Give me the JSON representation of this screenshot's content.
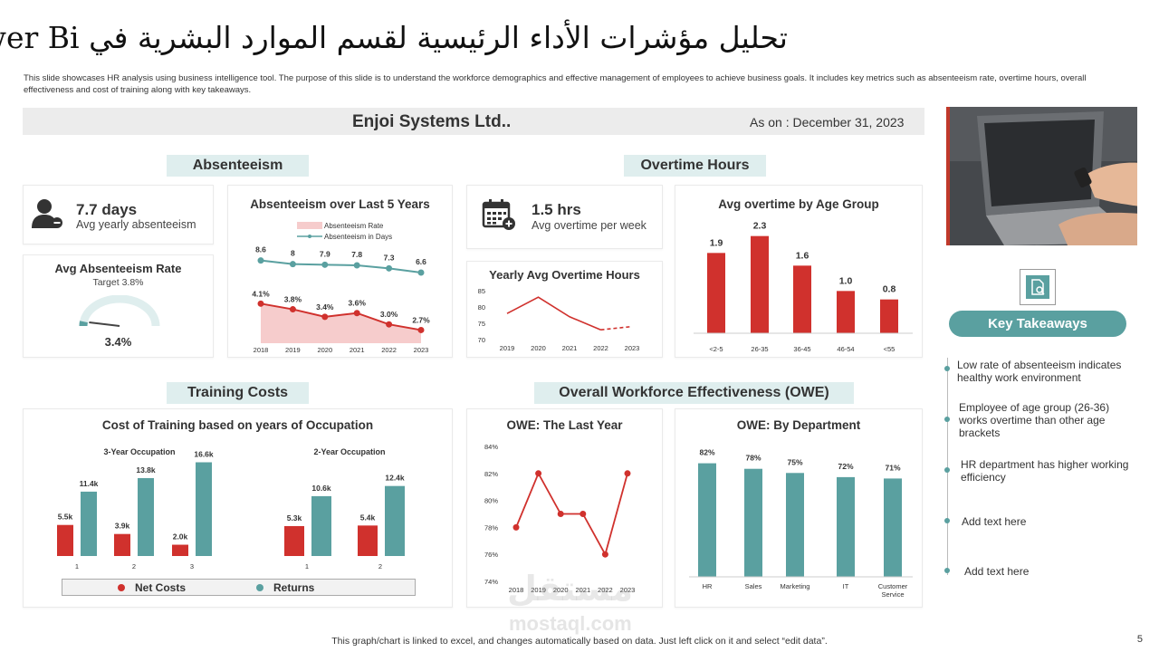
{
  "header": {
    "title": "تحليل مؤشرات الأداء الرئيسية لقسم الموارد البشرية في Power Bi",
    "description": "This slide showcases HR analysis using business intelligence tool. The purpose of this slide is to understand the workforce demographics and effective management of employees to achieve business goals. It includes key metrics such as absenteeism rate, overtime hours, overall effectiveness and cost of training along with key takeaways."
  },
  "company_band": {
    "company": "Enjoi Systems Ltd..",
    "as_on": "As on : December 31, 2023"
  },
  "sections": {
    "absenteeism": "Absenteeism",
    "overtime": "Overtime Hours",
    "training": "Training Costs",
    "owe": "Overall Workforce Effectiveness (OWE)"
  },
  "kpis": {
    "absenteeism_value": "7.7 days",
    "absenteeism_label": "Avg yearly absenteeism",
    "overtime_value": "1.5 hrs",
    "overtime_label": "Avg overtime per week"
  },
  "gauge": {
    "title": "Avg Absenteeism Rate",
    "target": "Target 3.8%",
    "value_label": "3.4%",
    "fraction": 0.034
  },
  "takeaways": {
    "button": "Key Takeaways",
    "items": [
      "Low rate of absenteeism indicates healthy work environment",
      "Employee of age group (26-36) works overtime than other age brackets",
      "HR department has higher working efficiency",
      "Add text here",
      "Add text here"
    ]
  },
  "footer": {
    "note": "This graph/chart is linked to excel, and changes automatically based on data. Just left click on it and select “edit data”.",
    "page": "5"
  },
  "watermark": {
    "arabic": "مستقل",
    "latin": "mostaql.com"
  },
  "colors": {
    "red": "#d0312d",
    "teal": "#5aa0a0",
    "band": "#ececec",
    "tag": "#dfeeee"
  },
  "chart_data": [
    {
      "id": "absenteeism-5yr",
      "type": "line",
      "title": "Absenteeism over Last 5 Years",
      "categories": [
        "2018",
        "2019",
        "2020",
        "2021",
        "2022",
        "2023"
      ],
      "series": [
        {
          "name": "Absenteeism Rate",
          "values": [
            4.1,
            3.8,
            3.4,
            3.6,
            3.0,
            2.7
          ],
          "labels": [
            "4.1%",
            "3.8%",
            "3.4%",
            "3.6%",
            "3.0%",
            "2.7%"
          ]
        },
        {
          "name": "Absenteeism in Days",
          "values": [
            8.6,
            8,
            7.9,
            7.8,
            7.3,
            6.6
          ],
          "labels": [
            "8.6",
            "8",
            "7.9",
            "7.8",
            "7.3",
            "6.6"
          ]
        }
      ]
    },
    {
      "id": "yearly-overtime",
      "type": "line",
      "title": "Yearly Avg Overtime Hours",
      "categories": [
        "2019",
        "2020",
        "2021",
        "2022",
        "2023"
      ],
      "values": [
        78,
        83,
        77,
        73,
        74
      ],
      "yticks": [
        "85",
        "80",
        "75",
        "70"
      ],
      "ylim": [
        70,
        85
      ]
    },
    {
      "id": "overtime-by-age",
      "type": "bar",
      "title": "Avg overtime by Age Group",
      "categories": [
        "<2-5",
        "26-35",
        "36-45",
        "46-54",
        "<55"
      ],
      "values": [
        1.9,
        2.3,
        1.6,
        1.0,
        0.8
      ],
      "labels": [
        "1.9",
        "2.3",
        "1.6",
        "1.0",
        "0.8"
      ]
    },
    {
      "id": "training-costs",
      "type": "bar",
      "title": "Cost of Training based on years of Occupation",
      "groups": [
        {
          "name": "3-Year Occupation",
          "categories": [
            "1",
            "2",
            "3"
          ],
          "series": [
            {
              "name": "Net Costs",
              "values": [
                5.5,
                3.9,
                2.0
              ],
              "labels": [
                "5.5k",
                "3.9k",
                "2.0k"
              ]
            },
            {
              "name": "Returns",
              "values": [
                11.4,
                13.8,
                16.6
              ],
              "labels": [
                "11.4k",
                "13.8k",
                "16.6k"
              ]
            }
          ]
        },
        {
          "name": "2-Year Occupation",
          "categories": [
            "1",
            "2"
          ],
          "series": [
            {
              "name": "Net Costs",
              "values": [
                5.3,
                5.4
              ],
              "labels": [
                "5.3k",
                "5.4k"
              ]
            },
            {
              "name": "Returns",
              "values": [
                10.6,
                12.4
              ],
              "labels": [
                "10.6k",
                "12.4k"
              ]
            }
          ]
        }
      ],
      "legend": [
        "Net Costs",
        "Returns"
      ]
    },
    {
      "id": "owe-last-year",
      "type": "line",
      "title": "OWE: The Last Year",
      "categories": [
        "2018",
        "2019",
        "2020",
        "2021",
        "2022",
        "2023"
      ],
      "values": [
        78,
        82,
        79,
        79,
        76,
        82
      ],
      "yticks": [
        "84%",
        "82%",
        "80%",
        "78%",
        "76%",
        "74%"
      ],
      "ylim": [
        74,
        84
      ]
    },
    {
      "id": "owe-by-dept",
      "type": "bar",
      "title": "OWE: By Department",
      "categories": [
        "HR",
        "Sales",
        "Marketing",
        "IT",
        "Customer Service"
      ],
      "values": [
        82,
        78,
        75,
        72,
        71
      ],
      "labels": [
        "82%",
        "78%",
        "75%",
        "72%",
        "71%"
      ]
    }
  ]
}
